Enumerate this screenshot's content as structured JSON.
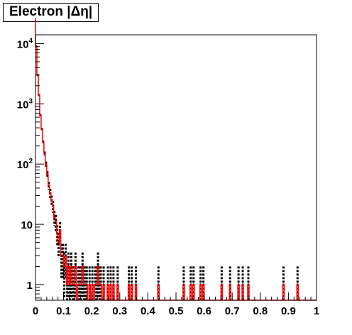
{
  "chart_data": {
    "type": "histogram",
    "title": "Electron |Δη|",
    "xlim": [
      0,
      1
    ],
    "ylim": [
      0.55,
      14000
    ],
    "yscale": "log",
    "grid": false,
    "legend": "none",
    "x_ticks": [
      0,
      0.1,
      0.2,
      0.3,
      0.4,
      0.5,
      0.6,
      0.7,
      0.8,
      0.9,
      1
    ],
    "x_tick_labels": [
      "0",
      "0.1",
      "0.2",
      "0.3",
      "0.4",
      "0.5",
      "0.6",
      "0.7",
      "0.8",
      "0.9",
      "1"
    ],
    "y_ticks": [
      1,
      10,
      100,
      1000,
      10000
    ],
    "y_tick_labels": [
      {
        "mantissa": "1",
        "exp": ""
      },
      {
        "mantissa": "10",
        "exp": ""
      },
      {
        "mantissa": "10",
        "exp": "2"
      },
      {
        "mantissa": "10",
        "exp": "3"
      },
      {
        "mantissa": "10",
        "exp": "4"
      }
    ],
    "bin_width": 0.005,
    "bins": [
      [
        0.0,
        9000
      ],
      [
        0.005,
        3000
      ],
      [
        0.01,
        1400
      ],
      [
        0.015,
        650
      ],
      [
        0.02,
        380
      ],
      [
        0.025,
        230
      ],
      [
        0.03,
        150
      ],
      [
        0.035,
        100
      ],
      [
        0.04,
        68
      ],
      [
        0.045,
        44
      ],
      [
        0.05,
        33
      ],
      [
        0.055,
        25
      ],
      [
        0.06,
        20
      ],
      [
        0.065,
        13
      ],
      [
        0.07,
        11
      ],
      [
        0.075,
        7
      ],
      [
        0.08,
        5
      ],
      [
        0.085,
        8
      ],
      [
        0.09,
        3
      ],
      [
        0.095,
        3
      ],
      [
        0.1,
        2
      ],
      [
        0.105,
        3
      ],
      [
        0.11,
        1
      ],
      [
        0.115,
        2
      ],
      [
        0.12,
        1
      ],
      [
        0.125,
        2
      ],
      [
        0.13,
        1
      ],
      [
        0.135,
        1
      ],
      [
        0.14,
        2
      ],
      [
        0.15,
        1
      ],
      [
        0.155,
        1
      ],
      [
        0.16,
        1
      ],
      [
        0.165,
        2
      ],
      [
        0.17,
        1
      ],
      [
        0.175,
        1
      ],
      [
        0.18,
        1
      ],
      [
        0.19,
        1
      ],
      [
        0.2,
        1
      ],
      [
        0.21,
        1
      ],
      [
        0.215,
        1
      ],
      [
        0.22,
        2
      ],
      [
        0.225,
        1
      ],
      [
        0.23,
        1
      ],
      [
        0.24,
        1
      ],
      [
        0.255,
        1
      ],
      [
        0.265,
        1
      ],
      [
        0.275,
        1
      ],
      [
        0.29,
        1
      ],
      [
        0.33,
        1
      ],
      [
        0.34,
        1
      ],
      [
        0.355,
        1
      ],
      [
        0.435,
        1
      ],
      [
        0.525,
        1
      ],
      [
        0.55,
        1
      ],
      [
        0.56,
        1
      ],
      [
        0.585,
        1
      ],
      [
        0.595,
        1
      ],
      [
        0.66,
        1
      ],
      [
        0.69,
        1
      ],
      [
        0.72,
        1
      ],
      [
        0.735,
        1
      ],
      [
        0.755,
        1
      ],
      [
        0.88,
        1
      ],
      [
        0.93,
        1
      ]
    ],
    "colors": {
      "data_points": "#000000",
      "fit_line": "#ff0000",
      "axes": "#000000"
    }
  }
}
